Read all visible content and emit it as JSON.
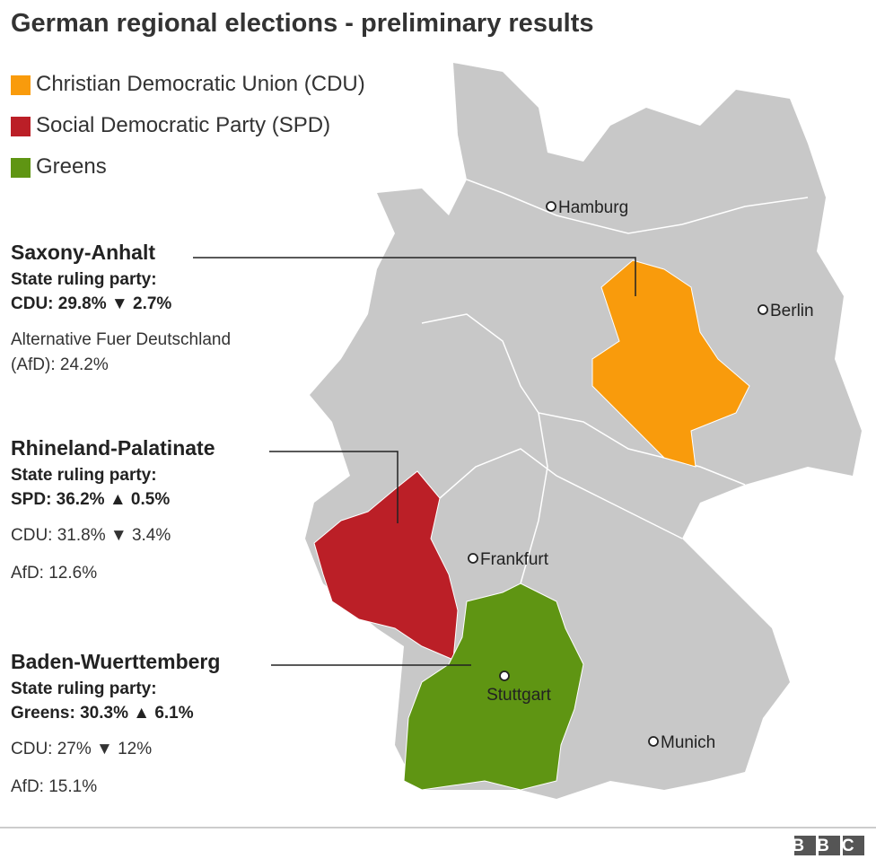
{
  "title": "German regional elections - preliminary results",
  "legend": [
    {
      "label": "Christian Democratic Union (CDU)",
      "color": "#f99b0c"
    },
    {
      "label": "Social Democratic Party (SPD)",
      "color": "#bb1f27"
    },
    {
      "label": "Greens",
      "color": "#5f9513"
    }
  ],
  "states": [
    {
      "name": "Saxony-Anhalt",
      "ruling_label": "State ruling party:",
      "ruling": "CDU: 29.8% ▼ 2.7%",
      "others": [
        "Alternative Fuer Deutschland (AfD): 24.2%"
      ]
    },
    {
      "name": "Rhineland-Palatinate",
      "ruling_label": "State ruling party:",
      "ruling": "SPD: 36.2% ▲ 0.5%",
      "others": [
        "CDU: 31.8% ▼ 3.4%",
        "AfD: 12.6%"
      ]
    },
    {
      "name": "Baden-Wuerttemberg",
      "ruling_label": "State ruling party:",
      "ruling": "Greens: 30.3% ▲ 6.1%",
      "others": [
        "CDU: 27% ▼ 12%",
        "AfD: 15.1%"
      ]
    }
  ],
  "cities": [
    "Hamburg",
    "Berlin",
    "Frankfurt",
    "Stuttgart",
    "Munich"
  ],
  "source": "BBC"
}
